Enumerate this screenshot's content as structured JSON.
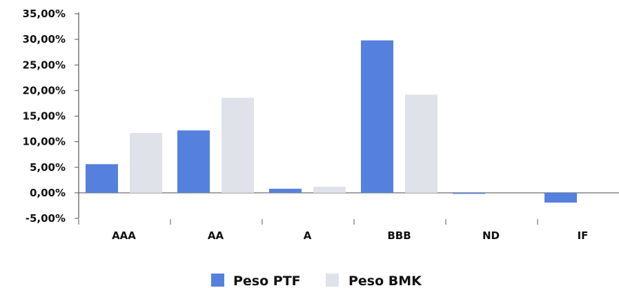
{
  "chart_data": {
    "type": "bar",
    "categories": [
      "AAA",
      "AA",
      "A",
      "BBB",
      "ND",
      "IF"
    ],
    "series": [
      {
        "name": "Peso PTF",
        "color": "#5580DE",
        "values": [
          5.6,
          12.2,
          0.8,
          29.8,
          -0.1,
          -1.9
        ]
      },
      {
        "name": "Peso BMK",
        "color": "#DFE3E9",
        "values": [
          11.7,
          18.6,
          1.2,
          19.2,
          0.0,
          0.0
        ]
      }
    ],
    "ylim": [
      -5,
      35
    ],
    "yticks": [
      -5,
      0,
      5,
      10,
      15,
      20,
      25,
      30,
      35
    ],
    "ytick_labels": [
      "-5,00%",
      "0,00%",
      "5,00%",
      "10,00%",
      "15,00%",
      "20,00%",
      "25,00%",
      "30,00%",
      "35,00%"
    ],
    "title": "",
    "xlabel": "",
    "ylabel": "",
    "legend_position": "bottom-center",
    "grid": false
  }
}
